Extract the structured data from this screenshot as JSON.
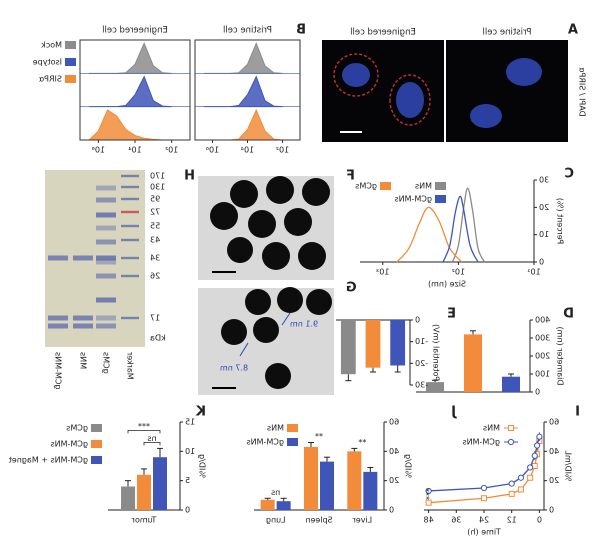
{
  "figure": {
    "A": {
      "panel": "A",
      "channel_label": "DAPI / SIRPα",
      "titles": [
        "Pristine cell",
        "Engineered cell"
      ]
    },
    "F": {
      "panel": "F"
    },
    "G": {
      "panel": "G",
      "annotations": [
        "9.1 nm",
        "8.7 nm"
      ]
    },
    "H": {
      "panel": "H",
      "markers": [
        "170",
        "130",
        "95",
        "72",
        "55",
        "43",
        "34",
        "26",
        "17"
      ],
      "unit": "kDa",
      "lanes": [
        "Marker",
        "gCMs",
        "MNs",
        "gCM-MNs"
      ]
    }
  },
  "chart_data": [
    {
      "panel": "B",
      "type": "density",
      "log_x": true,
      "xlim": [
        10,
        10000000
      ],
      "xticks": [
        {
          "value": 100,
          "label": "10²"
        },
        {
          "value": 10000,
          "label": "10⁴"
        },
        {
          "value": 1000000,
          "label": "10⁶"
        }
      ],
      "ylim": [
        0,
        100
      ],
      "x": [
        100,
        316,
        1000,
        3162,
        10000,
        31623,
        100000,
        316228,
        1000000,
        3162278
      ],
      "series": [
        {
          "name": "Mock",
          "color": "#8c8c8c"
        },
        {
          "name": "Isotype",
          "color": "#3f55b8"
        },
        {
          "name": "SIRPα",
          "color": "#f28c3a"
        }
      ],
      "facets": [
        {
          "title": "Pristine cell",
          "values": [
            [
              0,
              2,
              25,
              100,
              30,
              2,
              0,
              0,
              0,
              0
            ],
            [
              0,
              2,
              20,
              100,
              40,
              4,
              0,
              0,
              0,
              0
            ],
            [
              0,
              3,
              30,
              100,
              35,
              3,
              0,
              0,
              0,
              0
            ]
          ]
        },
        {
          "title": "Engineered cell",
          "values": [
            [
              0,
              2,
              25,
              100,
              30,
              2,
              0,
              0,
              0,
              0
            ],
            [
              0,
              2,
              20,
              100,
              40,
              4,
              0,
              0,
              0,
              0
            ],
            [
              0,
              0,
              2,
              6,
              15,
              35,
              80,
              100,
              30,
              0
            ]
          ]
        }
      ]
    },
    {
      "panel": "C",
      "type": "line",
      "log_x": true,
      "smooth": true,
      "xlim": [
        10,
        2000
      ],
      "xticks": [
        {
          "value": 10,
          "label": "10¹"
        },
        {
          "value": 100,
          "label": "10²"
        },
        {
          "value": 1000,
          "label": "10³"
        }
      ],
      "ylim": [
        0,
        30
      ],
      "yticks": [
        0,
        10,
        20,
        30
      ],
      "xlabel": "Size (nm)",
      "ylabel": "Percent (%)",
      "series": [
        {
          "name": "MNs",
          "color": "#8a8a8a",
          "x": [
            45,
            55,
            65,
            75,
            85,
            100,
            120
          ],
          "values": [
            0,
            5,
            19,
            27,
            20,
            6,
            0
          ]
        },
        {
          "name": "gCMs",
          "color": "#f28c3a",
          "x": [
            90,
            130,
            180,
            250,
            330,
            450,
            650
          ],
          "values": [
            0,
            5,
            15,
            20,
            14,
            5,
            0
          ]
        },
        {
          "name": "gCM-MNs",
          "color": "#3f55b8",
          "x": [
            55,
            70,
            85,
            95,
            110,
            130,
            160
          ],
          "values": [
            0,
            6,
            19,
            24,
            18,
            6,
            0
          ]
        }
      ]
    },
    {
      "panel": "D",
      "type": "bar",
      "ylabel": "Diameter (nm)",
      "ylim": [
        0,
        400
      ],
      "yticks": [
        0,
        100,
        200,
        300,
        400
      ],
      "values": [
        85,
        320,
        55
      ],
      "errors": [
        15,
        20,
        10
      ],
      "colors": [
        "#3f55b8",
        "#f28c3a",
        "#8a8a8a"
      ]
    },
    {
      "panel": "E",
      "type": "bar",
      "ylabel": "Potential (mV)",
      "ylim": [
        -30,
        0
      ],
      "yticks": [
        0,
        -10,
        -20,
        -30
      ],
      "values": [
        -21,
        -22,
        -25
      ],
      "errors": [
        3,
        2,
        3
      ],
      "colors": [
        "#3f55b8",
        "#f28c3a",
        "#8a8a8a"
      ]
    },
    {
      "panel": "I",
      "type": "line",
      "xlim": [
        -2,
        50
      ],
      "xticks": [
        0,
        12,
        24,
        36,
        48
      ],
      "ylim": [
        0,
        60
      ],
      "yticks": [
        0,
        20,
        40,
        60
      ],
      "xlabel": "Time (h)",
      "ylabel": "%ID/mL",
      "annotation": "***",
      "x": [
        0,
        1,
        2,
        4,
        8,
        12,
        24,
        48
      ],
      "series": [
        {
          "name": "MNs",
          "color": "#f28c3a",
          "marker": "square",
          "values": [
            47,
            38,
            30,
            22,
            14,
            11,
            8,
            5
          ],
          "errors": [
            3,
            3,
            2,
            2,
            2,
            1,
            1,
            1
          ]
        },
        {
          "name": "gCM-MNs",
          "color": "#3f55b8",
          "marker": "circle",
          "values": [
            50,
            44,
            37,
            29,
            22,
            18,
            15,
            13
          ],
          "errors": [
            3,
            3,
            3,
            2,
            2,
            2,
            2,
            2
          ]
        }
      ]
    },
    {
      "panel": "J",
      "type": "grouped_bar",
      "categories": [
        "Liver",
        "Spleen",
        "Lung"
      ],
      "ylim": [
        0,
        60
      ],
      "yticks": [
        0,
        20,
        40,
        60
      ],
      "ylabel": "%ID/g",
      "annotations": [
        "**",
        "**",
        "ns"
      ],
      "series": [
        {
          "name": "gCM-MNs",
          "color": "#3f55b8",
          "values": [
            26,
            33,
            6
          ],
          "errors": [
            3,
            3,
            2
          ]
        },
        {
          "name": "MNs",
          "color": "#f28c3a",
          "values": [
            40,
            43,
            7
          ],
          "errors": [
            2,
            3,
            1
          ]
        }
      ]
    },
    {
      "panel": "K",
      "type": "grouped_bar",
      "categories": [
        "Tumor"
      ],
      "ylim": [
        0,
        15
      ],
      "yticks": [
        0,
        5,
        10,
        15
      ],
      "ylabel": "%ID/g",
      "annotations": [
        "***",
        "ns"
      ],
      "series": [
        {
          "name": "gCM-MNs + Magnet",
          "color": "#3f55b8",
          "values": [
            9
          ],
          "errors": [
            1.5
          ]
        },
        {
          "name": "gCM-MNs",
          "color": "#f28c3a",
          "values": [
            6
          ],
          "errors": [
            1
          ]
        },
        {
          "name": "gCMs",
          "color": "#8a8a8a",
          "values": [
            4
          ],
          "errors": [
            1
          ]
        }
      ]
    }
  ]
}
